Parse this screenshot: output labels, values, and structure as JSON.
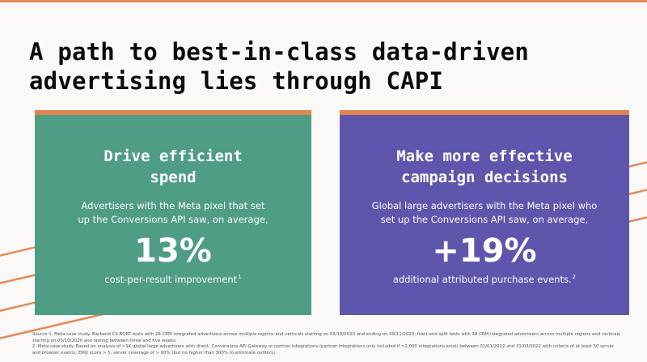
{
  "slide": {
    "title_lines": [
      "A path to best-in-class data-driven",
      "advertising lies through CAPI"
    ]
  },
  "cards": [
    {
      "title_lines": [
        "Drive efficient",
        "spend"
      ],
      "body_lines": [
        "Advertisers with the Meta pixel that set",
        "up the Conversions API saw, on average,"
      ],
      "stat": "13%",
      "caption": "cost-per-result improvement",
      "footnote_ref": "1"
    },
    {
      "title_lines": [
        "Make more effective",
        "campaign decisions"
      ],
      "body_lines": [
        "Global large advertisers with the Meta pixel who",
        "set up the Conversions API saw, on average,"
      ],
      "stat": "+19%",
      "caption": "additional attributed purchase events.",
      "footnote_ref": "2"
    }
  ],
  "footnotes": [
    "Source 1. Meta case study. Backend CS-BQRT tests with 26 CRM integrated advertisers across multiple regions and verticals starting on 05/10/2020 and ending on 09/11/2020; front-end split tests with 18 CRM integrated advertisers across multiple regions and verticals starting on 05/10/2020 and lasting between three and five weeks.",
    "2. Meta case study. Based on analysis of >1K global large advertisers with direct, Conversions API Gateway or partner integrations (partner integrations only included if >1,000 integrations exist) between 01/01/2022 and 31/03/2022 with criteria of at least 50 server and browser events, EMQ score > 5, server coverage of > 90% (but no higher than 300% to eliminate outliers)."
  ],
  "colors": {
    "accent_orange": "#e58a57",
    "card_green": "#4e9d84",
    "card_purple": "#5e55ad",
    "background": "#faf9f8"
  }
}
